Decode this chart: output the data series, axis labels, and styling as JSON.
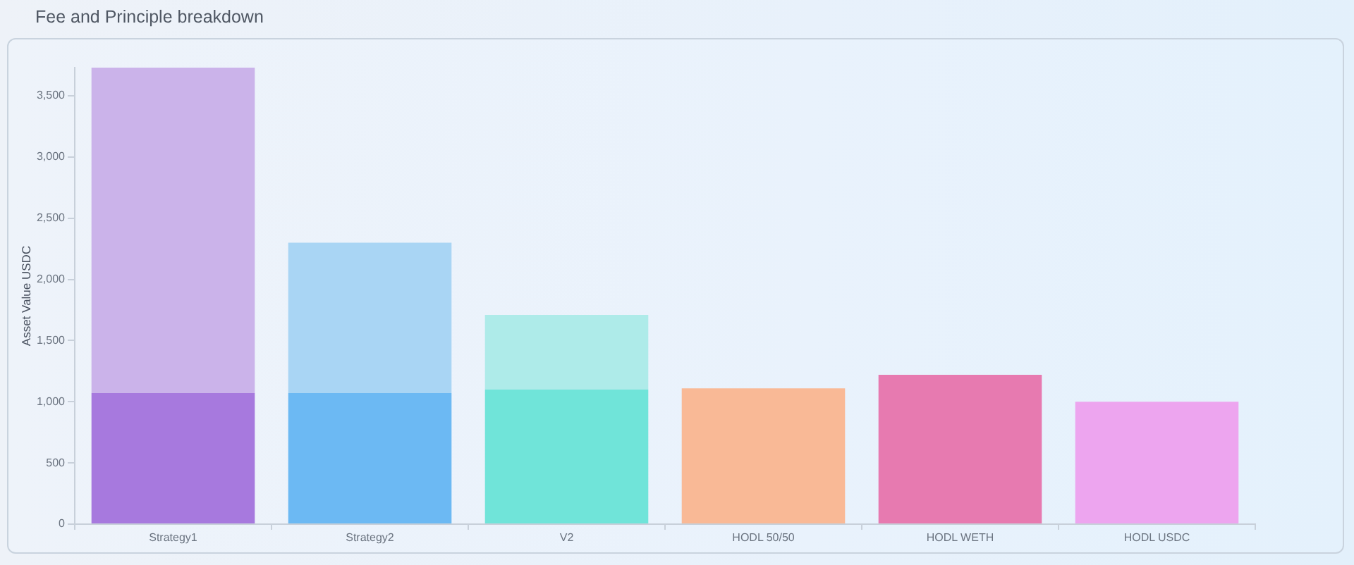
{
  "chart_data": {
    "type": "bar",
    "title": "Fee and Principle breakdown",
    "ylabel": "Asset Value USDC",
    "categories": [
      "Strategy1",
      "Strategy2",
      "V2",
      "HODL 50/50",
      "HODL WETH",
      "HODL USDC"
    ],
    "stacked": true,
    "series": [
      {
        "colors": [
          "#a779de",
          "#6cb9f3",
          "#70e4d9",
          "#f9b996",
          "#e77ab0",
          "#eda5ef"
        ],
        "values": [
          1070,
          1070,
          1100,
          1110,
          1220,
          1000
        ]
      },
      {
        "colors": [
          "#cbb3ea",
          "#a9d5f4",
          "#aeebe9",
          "#f9b996",
          "#e77ab0",
          "#eda5ef"
        ],
        "values": [
          2660,
          1230,
          610,
          null,
          null,
          null
        ]
      }
    ],
    "ylim": [
      0,
      3730
    ],
    "yticks": [
      0,
      500,
      {
        "value": 1000,
        "label": "1,000"
      },
      {
        "value": 1500,
        "label": "1,500"
      },
      {
        "value": 2000,
        "label": "2,000"
      },
      {
        "value": 2500,
        "label": "2,500"
      },
      {
        "value": 3000,
        "label": "3,000"
      },
      {
        "value": 3500,
        "label": "3,500"
      }
    ],
    "grid": false,
    "legend": false
  }
}
